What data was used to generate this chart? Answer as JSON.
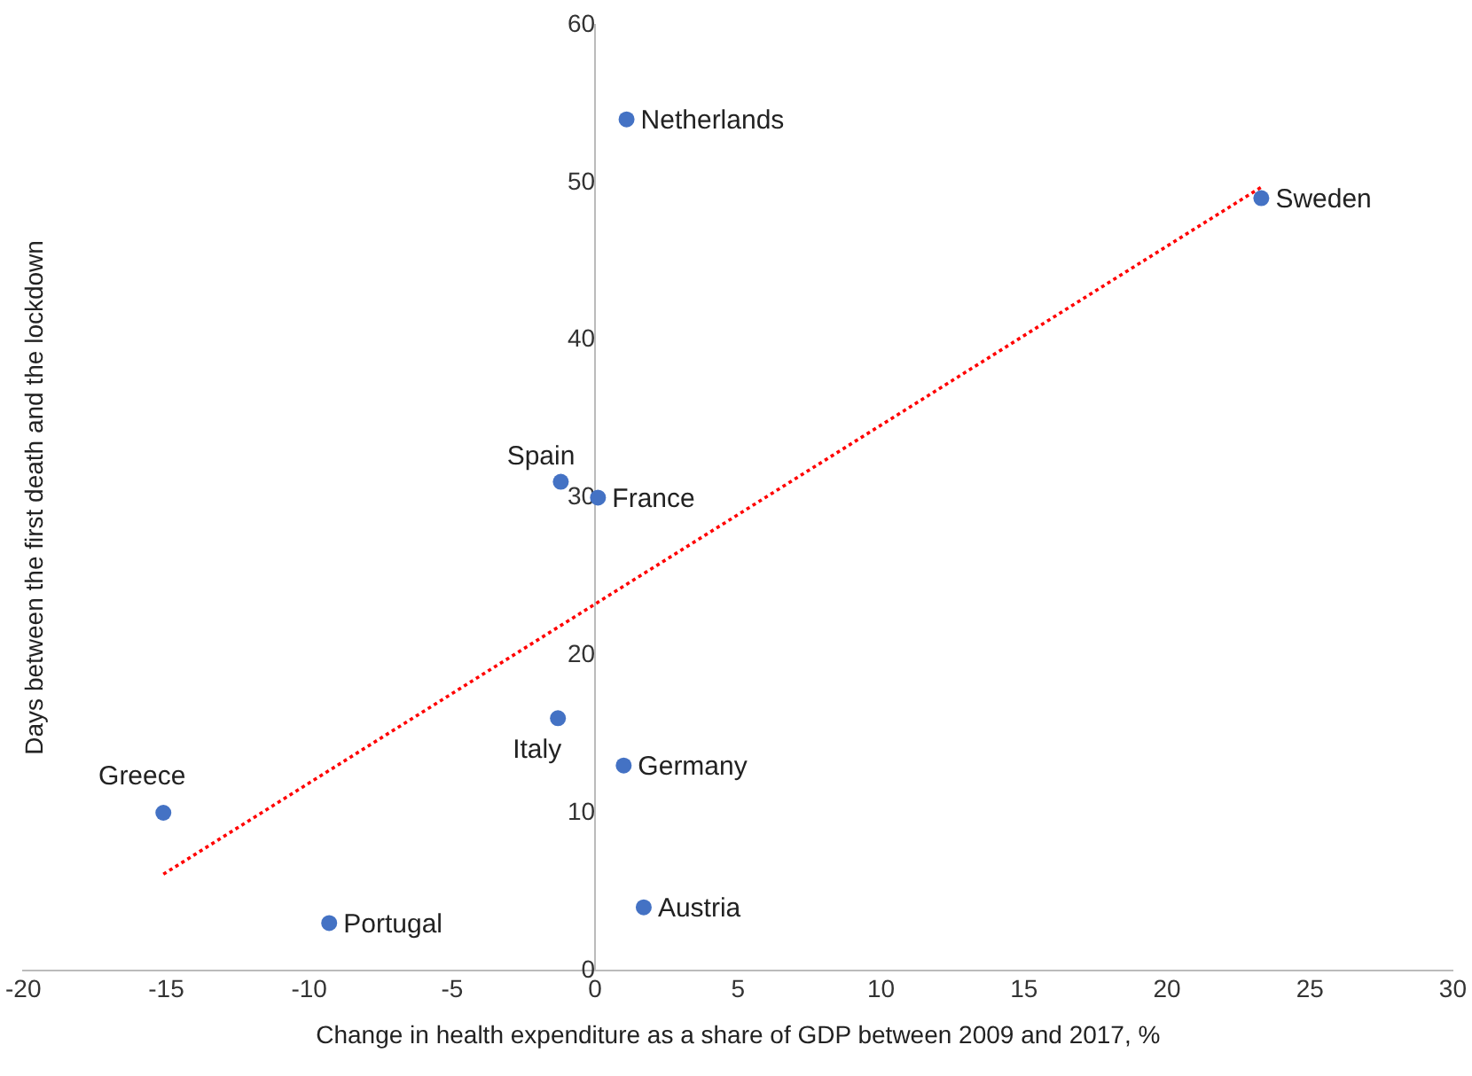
{
  "chart_data": {
    "type": "scatter",
    "xlabel": "Change in health expenditure as a share of GDP between 2009 and 2017, %",
    "ylabel": "Days between the first death and the lockdown",
    "xlim": [
      -20,
      30
    ],
    "xticks": [
      -20,
      -15,
      -10,
      -5,
      0,
      5,
      10,
      15,
      20,
      25,
      30
    ],
    "ylim": [
      0,
      60
    ],
    "yticks": [
      0,
      10,
      20,
      30,
      40,
      50,
      60
    ],
    "grid": false,
    "legend": false,
    "marker": "circle",
    "series": [
      {
        "type": "scatter",
        "color": "#4472c4",
        "x": [
          1.1,
          23.3,
          -1.2,
          0.1,
          -1.3,
          1.0,
          1.7,
          -15.1,
          -9.3
        ],
        "values": [
          54,
          49,
          31,
          30,
          16,
          13,
          4,
          10,
          3
        ]
      },
      {
        "type": "line",
        "color": "#ff0000",
        "line_style": "dotted",
        "marker": "none",
        "x": [
          -15.1,
          23.3
        ],
        "values": [
          6.1,
          49.7
        ]
      }
    ],
    "annotations": [
      {
        "text": "Netherlands",
        "x": 1.1,
        "y": 54
      },
      {
        "text": "Sweden",
        "x": 23.3,
        "y": 49
      },
      {
        "text": "Spain",
        "x": -1.2,
        "y": 31
      },
      {
        "text": "France",
        "x": 0.1,
        "y": 30
      },
      {
        "text": "Italy",
        "x": -1.3,
        "y": 16
      },
      {
        "text": "Germany",
        "x": 1.0,
        "y": 13
      },
      {
        "text": "Austria",
        "x": 1.7,
        "y": 4
      },
      {
        "text": "Greece",
        "x": -15.1,
        "y": 10
      },
      {
        "text": "Portugal",
        "x": -9.3,
        "y": 3
      }
    ]
  }
}
